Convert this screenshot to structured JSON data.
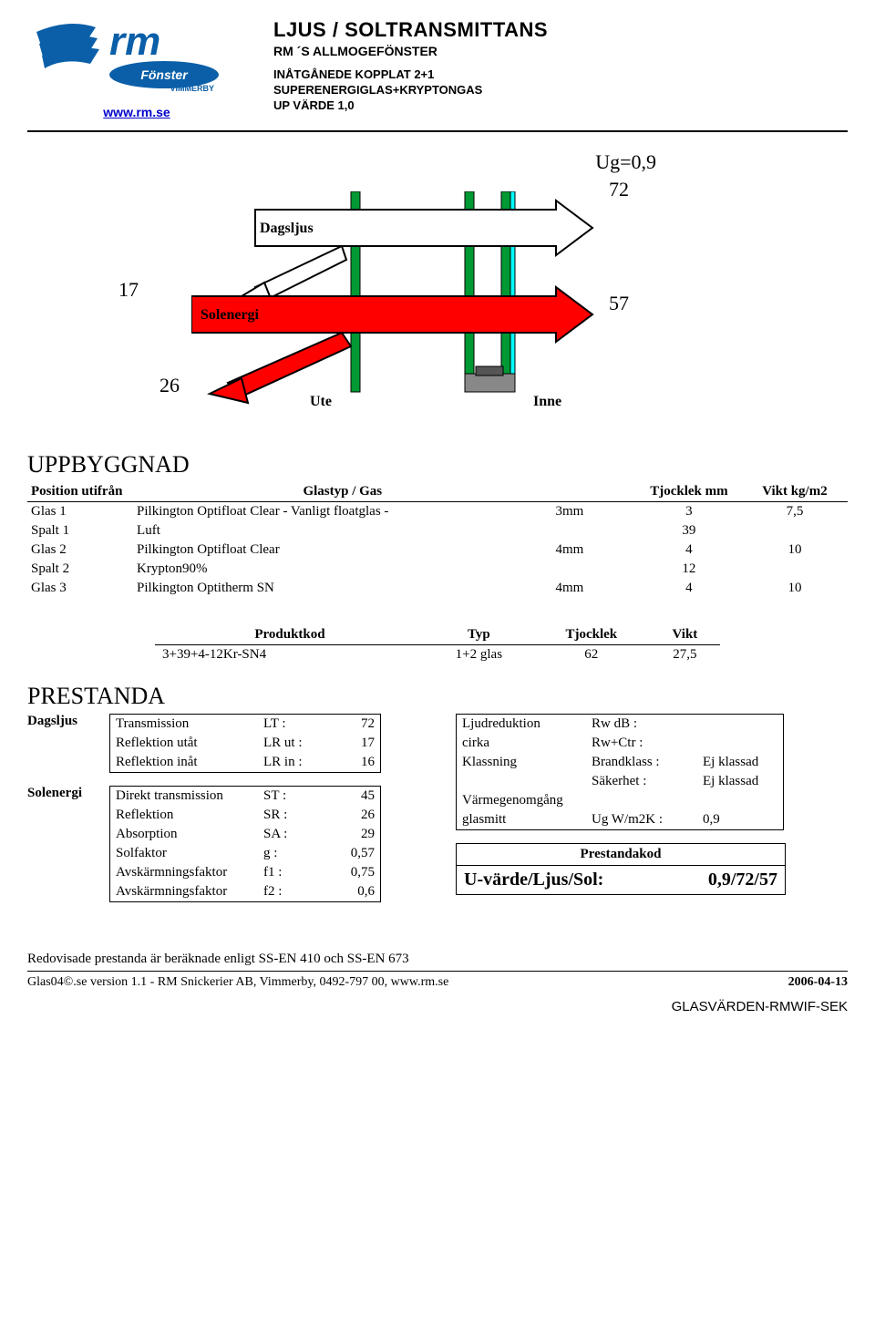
{
  "header": {
    "url": "www.rm.se",
    "title": "LJUS / SOLTRANSMITTANS",
    "subtitle": "RM ´S ALLMOGEFÖNSTER",
    "spec1": "INÅTGÅNEDE KOPPLAT 2+1",
    "spec2": "SUPERENERGIGLAS+KRYPTONGAS",
    "spec3": "UP VÄRDE 1,0"
  },
  "diagram": {
    "ug": "Ug=0,9",
    "val_top": "72",
    "val_left": "17",
    "val_right": "57",
    "val_bottom": "26",
    "label_dag": "Dagsljus",
    "label_sol": "Solenergi",
    "label_ute": "Ute",
    "label_inne": "Inne",
    "colors": {
      "dag_arrow": "#ffffff",
      "sol_arrow": "#ff0000",
      "pane": "#009933",
      "coat": "#00ffff",
      "outline": "#000000"
    }
  },
  "uppbyggnad": {
    "title": "UPPBYGGNAD",
    "headers": {
      "pos": "Position utifrån",
      "typ": "Glastyp / Gas",
      "tj": "Tjocklek mm",
      "vikt": "Vikt kg/m2"
    },
    "rows": [
      {
        "pos": "Glas 1",
        "typ": "Pilkington Optifloat Clear    - Vanligt floatglas -",
        "dim": "3mm",
        "tj": "3",
        "vikt": "7,5"
      },
      {
        "pos": "Spalt 1",
        "typ": "Luft",
        "dim": "",
        "tj": "39",
        "vikt": ""
      },
      {
        "pos": "Glas 2",
        "typ": "Pilkington Optifloat Clear",
        "dim": "4mm",
        "tj": "4",
        "vikt": "10"
      },
      {
        "pos": "Spalt 2",
        "typ": "Krypton90%",
        "dim": "",
        "tj": "12",
        "vikt": ""
      },
      {
        "pos": "Glas 3",
        "typ": "Pilkington Optitherm SN",
        "dim": "4mm",
        "tj": "4",
        "vikt": "10"
      }
    ]
  },
  "produkt": {
    "headers": {
      "kod": "Produktkod",
      "typ": "Typ",
      "tj": "Tjocklek",
      "vikt": "Vikt"
    },
    "row": {
      "kod": "3+39+4-12Kr-SN4",
      "typ": "1+2 glas",
      "tj": "62",
      "vikt": "27,5"
    }
  },
  "prestanda": {
    "title": "PRESTANDA",
    "dag_label": "Dagsljus",
    "sol_label": "Solenergi",
    "dag": [
      {
        "n": "Transmission",
        "s": "LT :",
        "v": "72"
      },
      {
        "n": "Reflektion utåt",
        "s": "LR ut :",
        "v": "17"
      },
      {
        "n": "Reflektion inåt",
        "s": "LR in :",
        "v": "16"
      }
    ],
    "sol": [
      {
        "n": "Direkt transmission",
        "s": "ST :",
        "v": "45"
      },
      {
        "n": "Reflektion",
        "s": "SR :",
        "v": "26"
      },
      {
        "n": "Absorption",
        "s": "SA :",
        "v": "29"
      },
      {
        "n": "Solfaktor",
        "s": "g :",
        "v": "0,57"
      },
      {
        "n": "Avskärmningsfaktor",
        "s": "f1 :",
        "v": "0,75"
      },
      {
        "n": "Avskärmningsfaktor",
        "s": "f2 :",
        "v": "0,6"
      }
    ],
    "right": [
      {
        "n": "Ljudreduktion",
        "s": "Rw dB :",
        "v": ""
      },
      {
        "n": "   cirka",
        "s": "Rw+Ctr :",
        "v": ""
      },
      {
        "n": "Klassning",
        "s": "Brandklass :",
        "v": "Ej klassad"
      },
      {
        "n": "",
        "s": "Säkerhet :",
        "v": "Ej klassad"
      },
      {
        "n": "Värmegenomgång",
        "s": "",
        "v": ""
      },
      {
        "n": "   glasmitt",
        "s": "Ug W/m2K :",
        "v": "0,9"
      }
    ],
    "kod_h": "Prestandakod",
    "kod_l": "U-värde/Ljus/Sol:",
    "kod_v": "0,9/72/57"
  },
  "footer": {
    "note": "Redovisade prestanda är beräknade enligt SS-EN 410 och SS-EN 673",
    "left": "Glas04©.se version 1.1   -   RM Snickerier AB, Vimmerby, 0492-797 00, www.rm.se",
    "right": "2006-04-13",
    "tag": "GLASVÄRDEN-RMWIF-SEK"
  }
}
